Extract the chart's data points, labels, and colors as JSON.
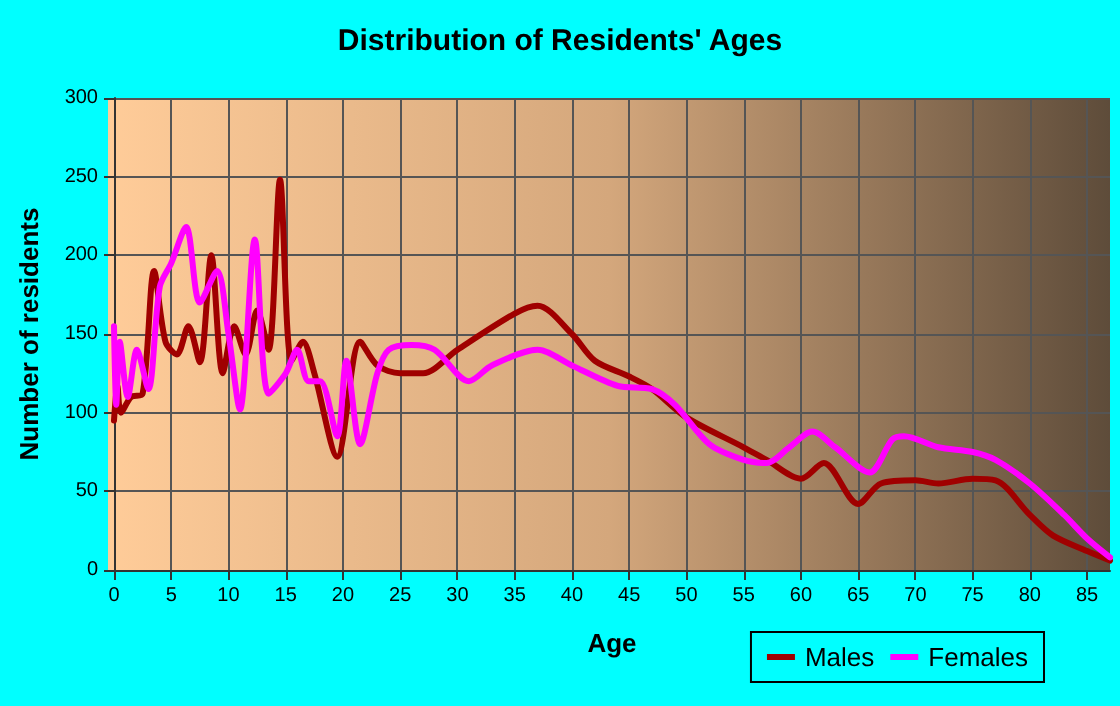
{
  "chart_data": {
    "type": "line",
    "title": "Distribution of Residents' Ages",
    "xlabel": "Age",
    "ylabel": "Number of residents",
    "xlim": [
      0,
      87
    ],
    "xticks": [
      0,
      5,
      10,
      15,
      20,
      25,
      30,
      35,
      40,
      45,
      50,
      55,
      60,
      65,
      70,
      75,
      80,
      85
    ],
    "ylim": [
      0,
      300
    ],
    "yticks": [
      0,
      50,
      100,
      150,
      200,
      250,
      300
    ],
    "grid": true,
    "legend": "bottom right",
    "marker": "none",
    "line_style": "solid",
    "series": [
      {
        "name": "Males",
        "color": "#a00000",
        "x": [
          0,
          0.3,
          0.6,
          1.5,
          2.5,
          3.5,
          4.5,
          5.5,
          6.5,
          7.5,
          8.5,
          9.5,
          10.5,
          11.5,
          12.5,
          13.5,
          14.5,
          15.5,
          16.5,
          17.5,
          19.5,
          21.5,
          23,
          25,
          27,
          30,
          35,
          37,
          40,
          42,
          45,
          47,
          50,
          55,
          57,
          60,
          62,
          65,
          67,
          70,
          72,
          75,
          77,
          80,
          82,
          85,
          87
        ],
        "values": [
          95,
          117,
          100,
          110,
          112,
          190,
          145,
          137,
          155,
          132,
          200,
          125,
          155,
          137,
          165,
          140,
          248,
          133,
          145,
          125,
          72,
          145,
          130,
          125,
          125,
          140,
          163,
          168,
          150,
          133,
          123,
          115,
          97,
          78,
          70,
          58,
          68,
          42,
          55,
          57,
          55,
          58,
          57,
          35,
          22,
          12,
          6
        ]
      },
      {
        "name": "Females",
        "color": "#ff00ff",
        "x": [
          0,
          0.2,
          0.5,
          1.2,
          2,
          3,
          4,
          5,
          6.3,
          7.5,
          9,
          10,
          11,
          12.3,
          13.5,
          15,
          16,
          17,
          18,
          19.5,
          20.3,
          21.5,
          23,
          24,
          26,
          28,
          31,
          33,
          37,
          40,
          44,
          47,
          49,
          52,
          55,
          57,
          59,
          61,
          63,
          66,
          68,
          69,
          72,
          75,
          77,
          80,
          83,
          85,
          87
        ],
        "values": [
          155,
          105,
          145,
          110,
          140,
          115,
          180,
          195,
          218,
          170,
          190,
          150,
          102,
          210,
          112,
          125,
          140,
          120,
          120,
          85,
          133,
          80,
          125,
          140,
          143,
          140,
          120,
          130,
          140,
          130,
          117,
          115,
          105,
          80,
          70,
          68,
          78,
          88,
          78,
          62,
          83,
          85,
          78,
          75,
          70,
          55,
          35,
          20,
          8
        ]
      }
    ]
  }
}
